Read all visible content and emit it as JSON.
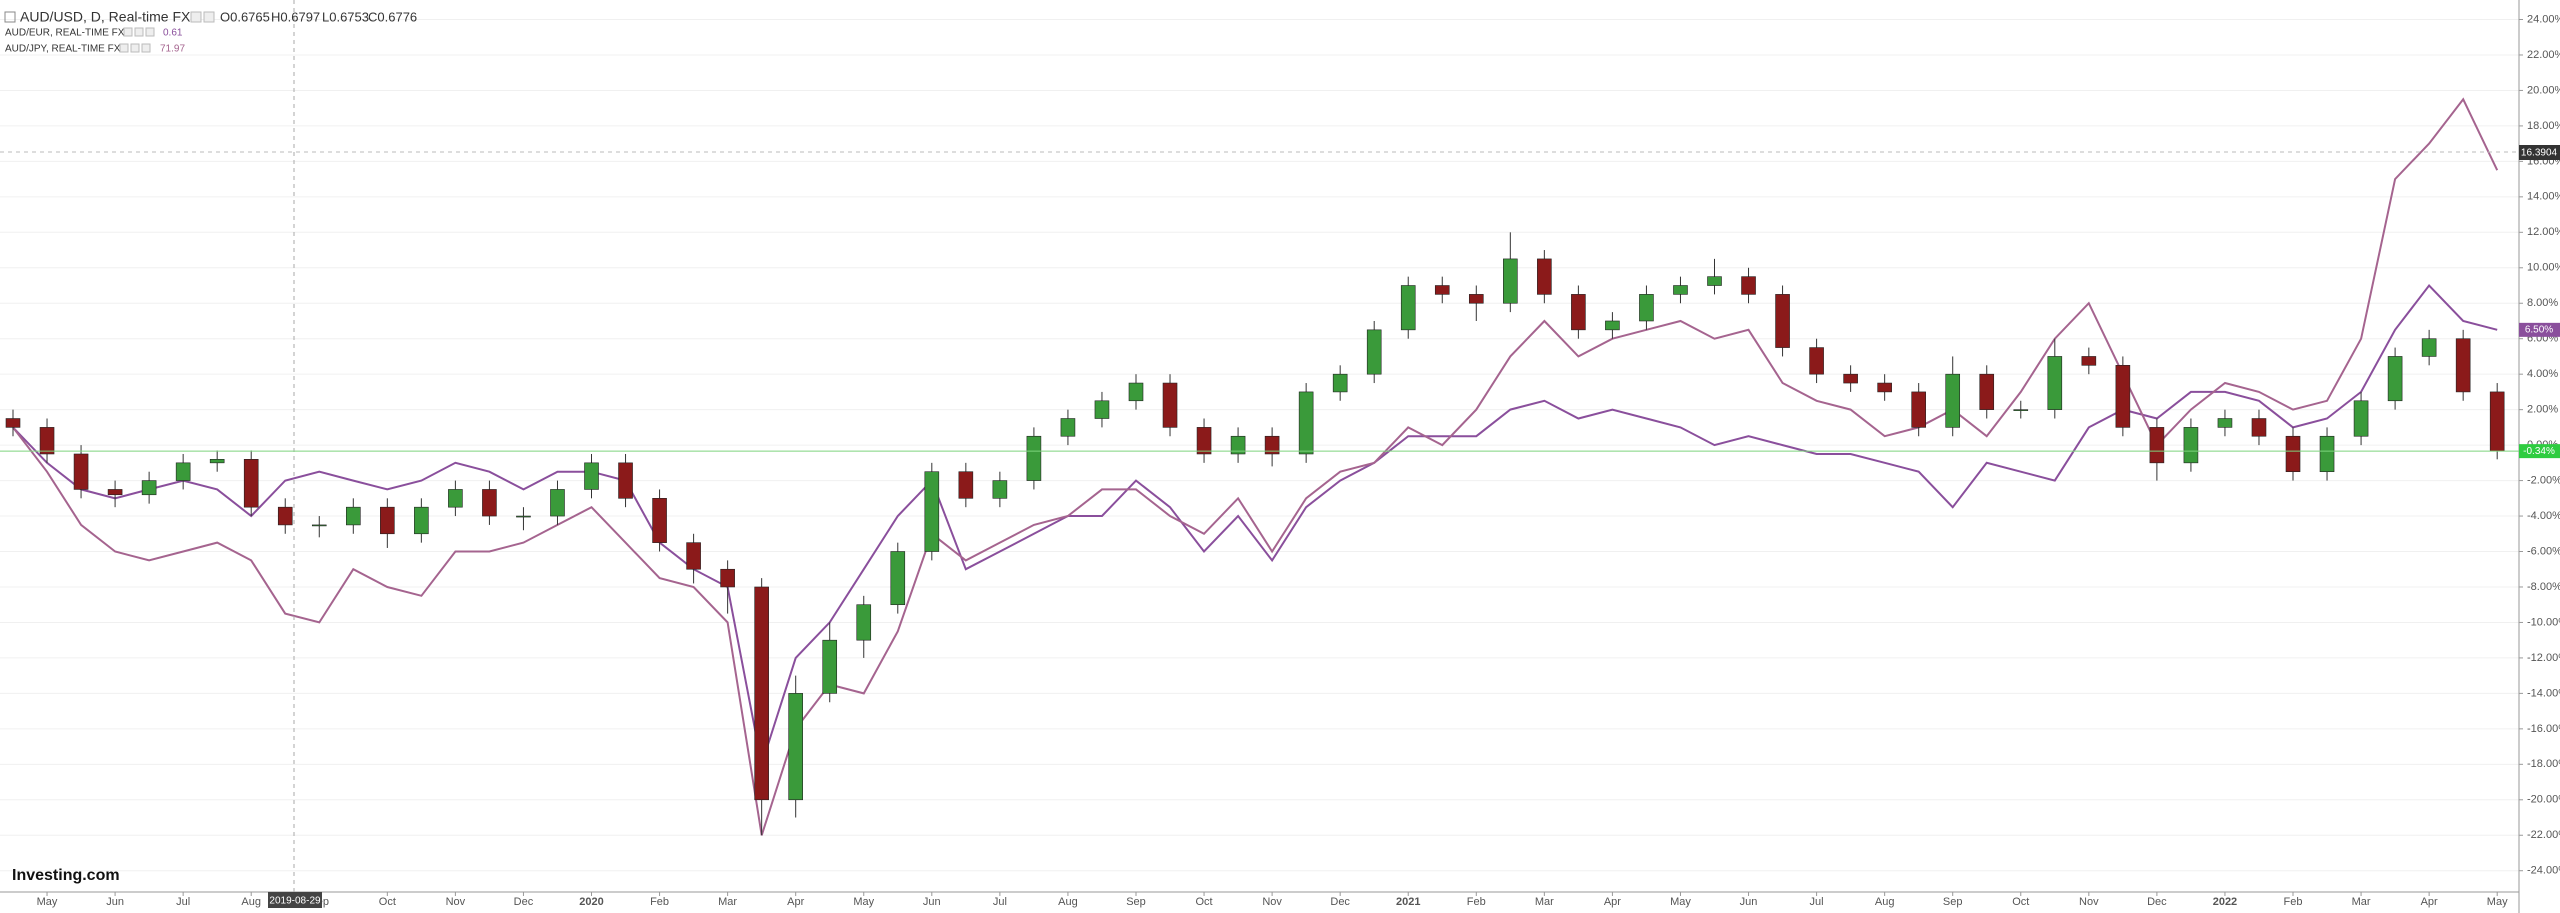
{
  "chart_data": {
    "type": "candlestick",
    "title": "AUD/USD, D, Real-time FX",
    "legend_values": [
      "O0.6765",
      "H0.6797",
      "L0.6753",
      "C0.6776"
    ],
    "categories": [
      null,
      "May",
      null,
      "Jun",
      null,
      "Jul",
      null,
      "Aug",
      null,
      "Sep",
      null,
      "Oct",
      null,
      "Nov",
      null,
      "Dec",
      null,
      "2020",
      null,
      "Feb",
      null,
      "Mar",
      null,
      "Apr",
      null,
      "May",
      null,
      "Jun",
      null,
      "Jul",
      null,
      "Aug",
      null,
      "Sep",
      null,
      "Oct",
      null,
      "Nov",
      null,
      "Dec",
      null,
      "2021",
      null,
      "Feb",
      null,
      "Mar",
      null,
      "Apr",
      null,
      "May",
      null,
      "Jun",
      null,
      "Jul",
      null,
      "Aug",
      null,
      "Sep",
      null,
      "Oct",
      null,
      "Nov",
      null,
      "Dec",
      null,
      "2022",
      null,
      "Feb",
      null,
      "Mar",
      null,
      "Apr",
      null,
      "May"
    ],
    "open": [
      1.5,
      1.0,
      -0.5,
      -2.5,
      -2.8,
      -2.0,
      -1.0,
      -0.8,
      -3.5,
      -4.5,
      -4.5,
      -3.5,
      -5.0,
      -3.5,
      -2.5,
      -4.0,
      -4.0,
      -2.5,
      -1.0,
      -3.0,
      -5.5,
      -7.0,
      -8.0,
      -20.0,
      -14.0,
      -11.0,
      -9.0,
      -6.0,
      -1.5,
      -3.0,
      -2.0,
      0.5,
      1.5,
      2.5,
      3.5,
      1.0,
      -0.5,
      0.5,
      -0.5,
      3.0,
      4.0,
      6.5,
      9.0,
      8.5,
      8.0,
      10.5,
      8.5,
      6.5,
      7.0,
      8.5,
      9.0,
      9.5,
      8.5,
      5.5,
      4.0,
      3.5,
      3.0,
      1.0,
      4.0,
      2.0,
      2.0,
      5.0,
      4.5,
      1.0,
      -1.0,
      1.0,
      1.5,
      0.5,
      -1.5,
      0.5,
      2.5,
      5.0,
      6.0,
      3.0
    ],
    "high": [
      2.0,
      1.5,
      0,
      -2.0,
      -1.5,
      -0.5,
      -0.3,
      -0.3,
      -3.0,
      -4.0,
      -3.0,
      -3.0,
      -3.0,
      -2.0,
      -2.0,
      -3.5,
      -2.0,
      -0.5,
      -0.5,
      -2.5,
      -5.0,
      -6.5,
      -7.5,
      -13.0,
      -10.0,
      -8.5,
      -5.5,
      -1.0,
      -1.0,
      -1.5,
      1.0,
      2.0,
      3.0,
      4.0,
      4.0,
      1.5,
      1.0,
      1.0,
      3.5,
      4.5,
      7.0,
      9.5,
      9.5,
      9.0,
      12.0,
      11.0,
      9.0,
      7.5,
      9.0,
      9.5,
      10.5,
      10.0,
      9.0,
      6.0,
      4.5,
      4.0,
      3.5,
      5.0,
      4.5,
      2.5,
      6.0,
      5.5,
      5.0,
      1.5,
      1.5,
      2.0,
      2.0,
      1.0,
      1.0,
      3.0,
      5.5,
      6.5,
      6.5,
      3.5
    ],
    "low": [
      0.5,
      -1.0,
      -3.0,
      -3.5,
      -3.3,
      -2.5,
      -1.5,
      -4.0,
      -5.0,
      -5.2,
      -5.0,
      -5.8,
      -5.5,
      -4.0,
      -4.5,
      -4.8,
      -4.5,
      -3.0,
      -3.5,
      -6.0,
      -7.8,
      -9.5,
      -22.0,
      -21.0,
      -14.5,
      -12.0,
      -9.5,
      -6.5,
      -3.5,
      -3.5,
      -2.5,
      0,
      1.0,
      2.0,
      0.5,
      -1.0,
      -1.0,
      -1.2,
      -1.0,
      2.5,
      3.5,
      6.0,
      8.0,
      7.0,
      7.5,
      8.0,
      6.0,
      6.0,
      6.5,
      8.0,
      8.5,
      8.0,
      5.0,
      3.5,
      3.0,
      2.5,
      0.5,
      0.5,
      1.5,
      1.5,
      1.5,
      4.0,
      0.5,
      -2.0,
      -1.5,
      0.5,
      0,
      -2.0,
      -2.0,
      0,
      2.0,
      4.5,
      2.5,
      -0.8
    ],
    "close": [
      1.0,
      -0.5,
      -2.5,
      -2.8,
      -2.0,
      -1.0,
      -0.8,
      -3.5,
      -4.5,
      -4.5,
      -3.5,
      -5.0,
      -3.5,
      -2.5,
      -4.0,
      -4.0,
      -2.5,
      -1.0,
      -3.0,
      -5.5,
      -7.0,
      -8.0,
      -20.0,
      -14.0,
      -11.0,
      -9.0,
      -6.0,
      -1.5,
      -3.0,
      -2.0,
      0.5,
      1.5,
      2.5,
      3.5,
      1.0,
      -0.5,
      0.5,
      -0.5,
      3.0,
      4.0,
      6.5,
      9.0,
      8.5,
      8.0,
      10.5,
      8.5,
      6.5,
      7.0,
      8.5,
      9.0,
      9.5,
      8.5,
      5.5,
      4.0,
      3.5,
      3.0,
      1.0,
      4.0,
      2.0,
      2.0,
      5.0,
      4.5,
      1.0,
      -1.0,
      1.0,
      1.5,
      0.5,
      -1.5,
      0.5,
      2.5,
      5.0,
      6.0,
      3.0,
      -0.34
    ],
    "last_close_label": "-0.34%",
    "up_color": "#3a9a3a",
    "down_color": "#8b1a1a",
    "series": [
      {
        "name": "AUD/EUR, REAL-TIME FX",
        "value_label": "0.61",
        "color": "#8a4f9c",
        "last_label": "6.50%",
        "values": [
          1.0,
          -1,
          -2.5,
          -3,
          -2.5,
          -2,
          -2.5,
          -4,
          -2,
          -1.5,
          -2,
          -2.5,
          -2,
          -1,
          -1.5,
          -2.5,
          -1.5,
          -1.5,
          -2,
          -5.5,
          -7,
          -8,
          -18,
          -12,
          -10,
          -7,
          -4,
          -2,
          -7,
          -6,
          -5,
          -4,
          -4,
          -2,
          -3.5,
          -6,
          -4,
          -6.5,
          -3.5,
          -2,
          -1,
          0.5,
          0.5,
          0.5,
          2,
          2.5,
          1.5,
          2,
          1.5,
          1,
          0,
          0.5,
          0,
          -0.5,
          -0.5,
          -1,
          -1.5,
          -3.5,
          -1,
          -1.5,
          -2,
          1,
          2,
          1.5,
          3,
          3,
          2.5,
          1,
          1.5,
          3,
          6.5,
          9,
          7,
          6.5
        ]
      },
      {
        "name": "AUD/JPY, REAL-TIME FX",
        "value_label": "71.97",
        "color": "#a5648f",
        "values": [
          1.0,
          -1.5,
          -4.5,
          -6,
          -6.5,
          -6,
          -5.5,
          -6.5,
          -9.5,
          -10,
          -7,
          -8,
          -8.5,
          -6,
          -6,
          -5.5,
          -4.5,
          -3.5,
          -5.5,
          -7.5,
          -8,
          -10,
          -22,
          -16,
          -13.5,
          -14,
          -10.5,
          -5,
          -6.5,
          -5.5,
          -4.5,
          -4,
          -2.5,
          -2.5,
          -4,
          -5,
          -3,
          -6,
          -3,
          -1.5,
          -1,
          1,
          0,
          2,
          5,
          7,
          5,
          6,
          6.5,
          7,
          6,
          6.5,
          3.5,
          2.5,
          2,
          0.5,
          1,
          2,
          0.5,
          3,
          6,
          8,
          4,
          0,
          2,
          3.5,
          3,
          2,
          2.5,
          6,
          15,
          17,
          19.5,
          15.5
        ]
      }
    ],
    "crosshair": {
      "x_label": "2019-08-29",
      "y_label": "16.3904"
    },
    "ylim": [
      -25.2,
      25.1
    ],
    "yticks": [
      {
        "value": 24,
        "label": "24.00%"
      },
      {
        "value": 22,
        "label": "22.00%"
      },
      {
        "value": 20,
        "label": "20.00%"
      },
      {
        "value": 18,
        "label": "18.00%"
      },
      {
        "value": 16,
        "label": "16.00%"
      },
      {
        "value": 14,
        "label": "14.00%"
      },
      {
        "value": 12,
        "label": "12.00%"
      },
      {
        "value": 10,
        "label": "10.00%"
      },
      {
        "value": 8,
        "label": "8.00%"
      },
      {
        "value": 6,
        "label": "6.00%"
      },
      {
        "value": 4,
        "label": "4.00%"
      },
      {
        "value": 2,
        "label": "2.00%"
      },
      {
        "value": 0,
        "label": "0.00%"
      },
      {
        "value": -2,
        "label": "-2.00%"
      },
      {
        "value": -4,
        "label": "-4.00%"
      },
      {
        "value": -6,
        "label": "-6.00%"
      },
      {
        "value": -8,
        "label": "-8.00%"
      },
      {
        "value": -10,
        "label": "-10.00%"
      },
      {
        "value": -12,
        "label": "-12.00%"
      },
      {
        "value": -14,
        "label": "-14.00%"
      },
      {
        "value": -16,
        "label": "-16.00%"
      },
      {
        "value": -18,
        "label": "-18.00%"
      },
      {
        "value": -20,
        "label": "-20.00%"
      },
      {
        "value": -22,
        "label": "-22.00%"
      },
      {
        "value": -24,
        "label": "-24.00%"
      }
    ],
    "grid": true
  },
  "logo": "Investing.com"
}
